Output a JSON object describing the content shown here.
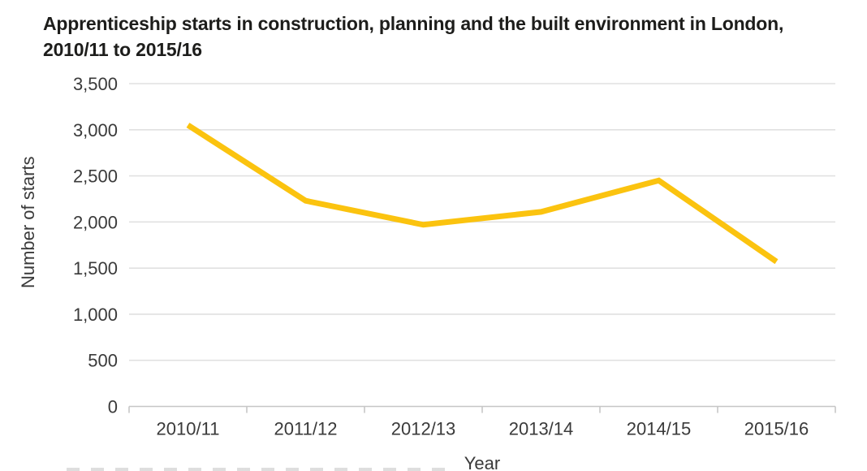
{
  "chart_data": {
    "type": "line",
    "title": "Apprenticeship starts in construction, planning and the built environment in London, 2010/11 to 2015/16",
    "categories": [
      "2010/11",
      "2011/12",
      "2012/13",
      "2013/14",
      "2014/15",
      "2015/16"
    ],
    "values": [
      3050,
      2230,
      1970,
      2110,
      2450,
      1570
    ],
    "series_name": "Apprenticeship starts",
    "xlabel": "Year",
    "ylabel": "Number of starts",
    "ylim": [
      0,
      3500
    ],
    "ytick_step": 500,
    "ytick_labels": [
      "0",
      "500",
      "1,000",
      "1,500",
      "2,000",
      "2,500",
      "3,000",
      "3,500"
    ],
    "grid": "horizontal",
    "legend": "none",
    "line_color": "#FBC30F",
    "line_width": 7,
    "gridline_color": "#E1E1E1",
    "axis_line_color": "#C6C6C6",
    "tick_text_color": "#3a3a3a",
    "title_color": "#1d1d1b"
  }
}
